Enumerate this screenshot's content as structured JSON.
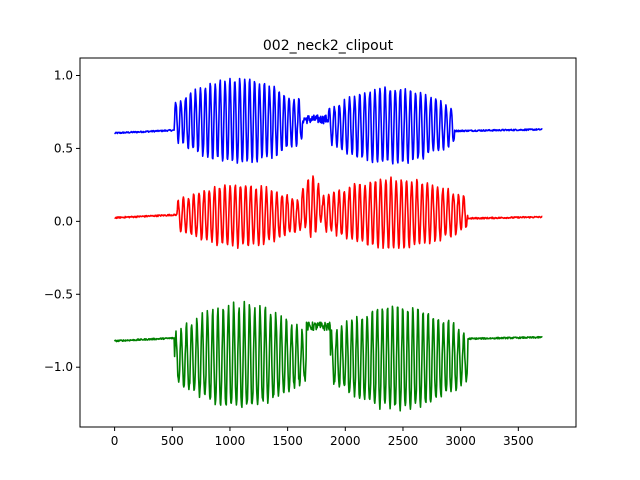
{
  "chart_data": {
    "type": "line",
    "title": "002_neck2_clipout",
    "xlabel": "",
    "ylabel": "",
    "xlim": [
      -300,
      4000
    ],
    "ylim": [
      -1.41,
      1.12
    ],
    "grid": false,
    "legend": "none",
    "x_ticks": [
      0,
      500,
      1000,
      1500,
      2000,
      2500,
      3000,
      3500
    ],
    "x_tick_labels": [
      "0",
      "500",
      "1000",
      "1500",
      "2000",
      "2500",
      "3000",
      "3500"
    ],
    "y_ticks": [
      1.0,
      0.5,
      0.0,
      -0.5,
      -1.0
    ],
    "y_tick_labels": [
      "1.0",
      "0.5",
      "0.0",
      "−0.5",
      "−1.0"
    ],
    "x_max": 3710,
    "series": [
      {
        "color": "#0000ff",
        "baseline_start": 0.605,
        "baseline_end": 0.63,
        "active_segments": [
          {
            "start": 520,
            "end": 1630,
            "center": 0.68,
            "min": 0.4,
            "max": 0.97,
            "cycles": 26
          },
          {
            "start": 1850,
            "end": 2950,
            "center": 0.66,
            "min": 0.4,
            "max": 0.91,
            "cycles": 25
          }
        ],
        "gap_level": 0.7
      },
      {
        "color": "#ff0000",
        "baseline_start": 0.025,
        "baseline_end": 0.03,
        "active_segments": [
          {
            "start": 540,
            "end": 1620,
            "center": 0.03,
            "min": -0.17,
            "max": 0.25,
            "cycles": 24
          },
          {
            "start": 1620,
            "end": 1800,
            "center": 0.1,
            "min": -0.1,
            "max": 0.31,
            "cycles": 4
          },
          {
            "start": 1800,
            "end": 3060,
            "center": 0.03,
            "min": -0.18,
            "max": 0.29,
            "cycles": 28
          }
        ],
        "gap_level": 0.03
      },
      {
        "color": "#008000",
        "baseline_start": -0.82,
        "baseline_end": -0.795,
        "active_segments": [
          {
            "start": 520,
            "end": 1660,
            "center": -0.82,
            "min": -1.27,
            "max": -0.57,
            "cycles": 25
          },
          {
            "start": 1870,
            "end": 3060,
            "center": -0.82,
            "min": -1.28,
            "max": -0.58,
            "cycles": 27
          }
        ],
        "gap_level": -0.72
      }
    ]
  }
}
